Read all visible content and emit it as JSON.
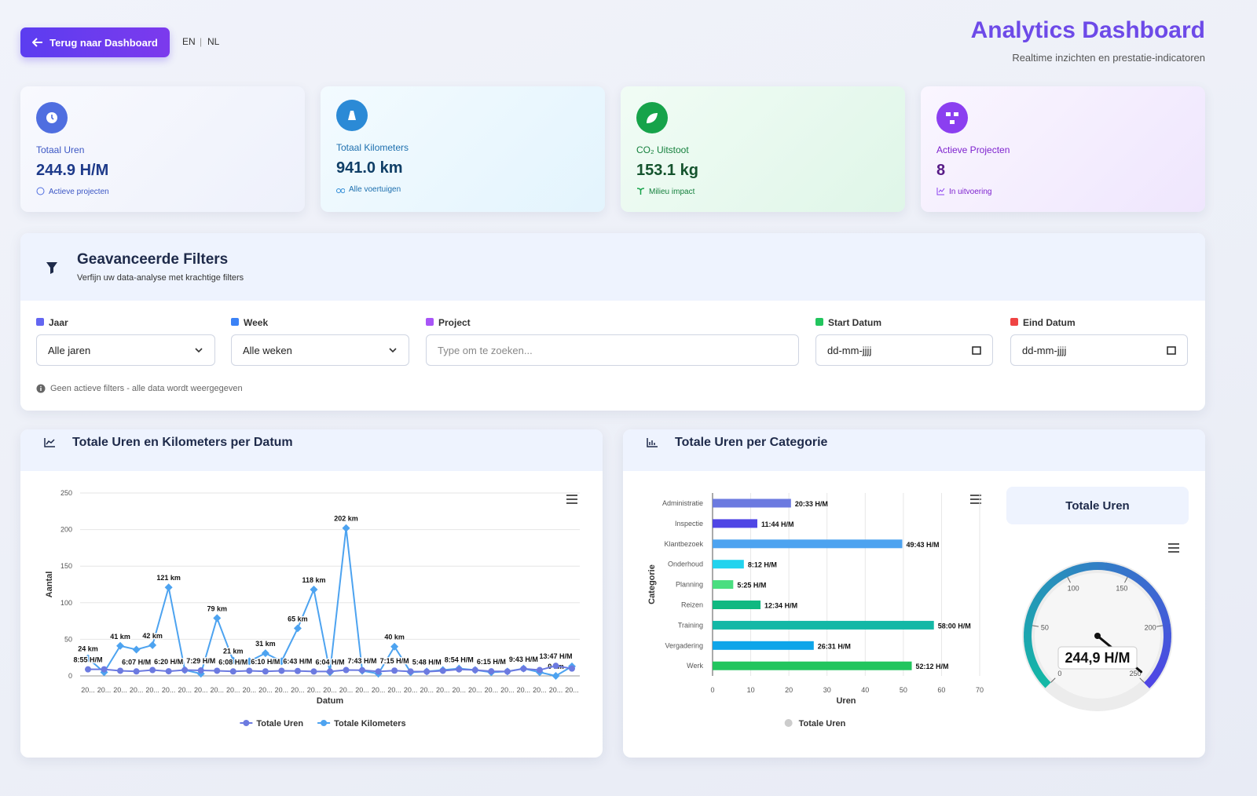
{
  "header": {
    "back_button": "Terug naar Dashboard",
    "lang_en": "EN",
    "lang_sep": "|",
    "lang_nl": "NL",
    "title": "Analytics Dashboard",
    "subtitle": "Realtime inzichten en prestatie-indicatoren"
  },
  "stats": [
    {
      "label": "Totaal Uren",
      "value": "244.9 H/M",
      "note": "Actieve projecten"
    },
    {
      "label": "Totaal Kilometers",
      "value": "941.0 km",
      "note": "Alle voertuigen"
    },
    {
      "label": "CO₂ Uitstoot",
      "value": "153.1 kg",
      "note": "Milieu impact"
    },
    {
      "label": "Actieve Projecten",
      "value": "8",
      "note": "In uitvoering"
    }
  ],
  "filters": {
    "title": "Geavanceerde Filters",
    "subtitle": "Verfijn uw data-analyse met krachtige filters",
    "fields": [
      {
        "label": "Jaar",
        "placeholder": "Alle jaren"
      },
      {
        "label": "Week",
        "placeholder": "Alle weken"
      },
      {
        "label": "Project",
        "placeholder": "Type om te zoeken..."
      },
      {
        "label": "Start Datum",
        "placeholder": "dd-mm-jjjj"
      },
      {
        "label": "Eind Datum",
        "placeholder": "dd-mm-jjjj"
      }
    ],
    "status": "Geen actieve filters - alle data wordt weergegeven"
  },
  "chart_data": [
    {
      "type": "line",
      "title": "Totale Uren en Kilometers per Datum",
      "x_label": "Datum",
      "y_label": "Aantal",
      "categories": [
        "20...",
        "20...",
        "20...",
        "20...",
        "20...",
        "20...",
        "20...",
        "20...",
        "20...",
        "20...",
        "20...",
        "20...",
        "20...",
        "20...",
        "20...",
        "20...",
        "20...",
        "20...",
        "20...",
        "20...",
        "20...",
        "20...",
        "20...",
        "20...",
        "20...",
        "20...",
        "20...",
        "20...",
        "20...",
        "20...",
        "20..."
      ],
      "ylim": [
        0,
        250
      ],
      "yticks": [
        0,
        50,
        100,
        150,
        200,
        250
      ],
      "grid": true,
      "series": [
        {
          "name": "Totale Uren",
          "color": "#6c7ae0",
          "values": [
            8.92,
            9,
            7,
            6.12,
            8,
            6.33,
            8,
            7.48,
            7,
            6.13,
            7,
            6.17,
            7,
            6.72,
            6,
            6.07,
            8,
            7.72,
            6,
            7.25,
            6,
            5.8,
            7,
            8.9,
            8,
            6.25,
            6,
            9.72,
            8,
            13.78,
            10
          ],
          "value_labels": [
            "8:55 H/M",
            null,
            null,
            "6:07 H/M",
            null,
            "6:20 H/M",
            null,
            "7:29 H/M",
            null,
            "6:08 H/M",
            null,
            "6:10 H/M",
            null,
            "6:43 H/M",
            null,
            "6:04 H/M",
            null,
            "7:43 H/M",
            null,
            "7:15 H/M",
            null,
            "5:48 H/M",
            null,
            "8:54 H/M",
            null,
            "6:15 H/M",
            null,
            "9:43 H/M",
            null,
            "13:47 H/M",
            null
          ]
        },
        {
          "name": "Totale Kilometers",
          "color": "#4da3f0",
          "values": [
            24,
            5,
            41,
            36,
            42,
            121,
            8,
            3,
            79,
            21,
            20,
            31,
            20,
            65,
            118,
            5,
            202,
            7,
            3,
            40,
            5,
            6,
            8,
            10,
            8,
            5,
            6,
            10,
            5,
            0,
            13
          ],
          "value_labels": [
            "24 km",
            null,
            "41 km",
            null,
            "42 km",
            "121 km",
            null,
            null,
            "79 km",
            "21 km",
            null,
            "31 km",
            null,
            "65 km",
            "118 km",
            null,
            "202 km",
            null,
            null,
            "40 km",
            null,
            null,
            null,
            null,
            null,
            null,
            null,
            null,
            null,
            "0 km",
            null
          ]
        }
      ]
    },
    {
      "type": "hbar",
      "title": "Totale Uren per Categorie",
      "x_label": "Uren",
      "y_label": "Categorie",
      "categories": [
        "Administratie",
        "Inspectie",
        "Klantbezoek",
        "Onderhoud",
        "Planning",
        "Reizen",
        "Training",
        "Vergadering",
        "Werk"
      ],
      "xlim": [
        0,
        70
      ],
      "xticks": [
        0,
        10,
        20,
        30,
        40,
        50,
        60,
        70
      ],
      "grid": true,
      "colors": [
        "#6c7ae0",
        "#4f46e5",
        "#4da3f0",
        "#22d3ee",
        "#4ade80",
        "#10b981",
        "#14b8a6",
        "#0ea5e9",
        "#22c55e"
      ],
      "series": [
        {
          "name": "Totale Uren",
          "color": "#cccccc",
          "values": [
            20.55,
            11.73,
            49.72,
            8.2,
            5.42,
            12.57,
            58,
            26.52,
            52.2
          ],
          "value_labels": [
            "20:33 H/M",
            "11:44 H/M",
            "49:43 H/M",
            "8:12 H/M",
            "5:25 H/M",
            "12:34 H/M",
            "58:00 H/M",
            "26:31 H/M",
            "52:12 H/M"
          ]
        }
      ]
    },
    {
      "type": "gauge",
      "title": "Totale Uren",
      "value": 244.9,
      "value_label": "244,9 H/M",
      "lim": [
        0,
        250
      ],
      "ticks": [
        0,
        50,
        100,
        150,
        200,
        250
      ],
      "colors": [
        "#14b8a6",
        "#4f46e5"
      ]
    }
  ]
}
